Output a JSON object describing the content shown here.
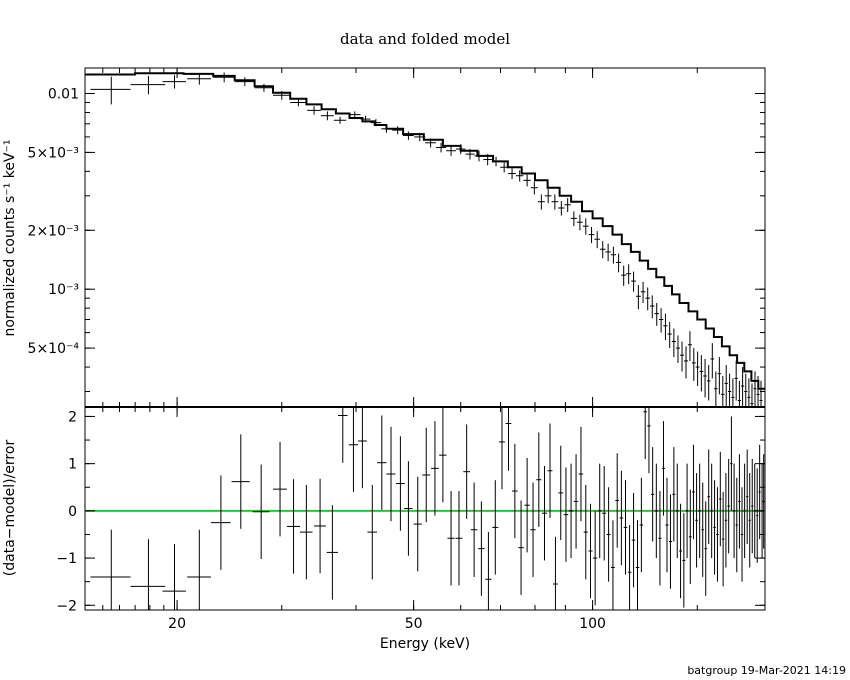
{
  "chart_data": [
    {
      "type": "scatter",
      "title": "data and folded model",
      "ylabel": "normalized counts s⁻¹ keV⁻¹",
      "xlabel": "",
      "yscale": "log",
      "xscale": "log",
      "xlim": [
        14,
        195
      ],
      "ylim": [
        0.00025,
        0.0135
      ],
      "yticks": [
        {
          "value": 0.01,
          "label": "0.01"
        },
        {
          "value": 0.005,
          "label": "5×10⁻³"
        },
        {
          "value": 0.002,
          "label": "2×10⁻³"
        },
        {
          "value": 0.001,
          "label": "10⁻³"
        },
        {
          "value": 0.0005,
          "label": "5×10⁻⁴"
        }
      ],
      "series": [
        {
          "type": "errorbar",
          "x": [
            15.5,
            17.9,
            19.8,
            21.8,
            24.0,
            26.0,
            28.0,
            30.0,
            32.0,
            34.0,
            35.8,
            37.6,
            39.8,
            41.5,
            43.2,
            45.0,
            47.0,
            49.0,
            51.2,
            53.4,
            55.6,
            57.8,
            60.0,
            62.2,
            64.4,
            66.6,
            68.8,
            71.0,
            73.2,
            75.4,
            77.6,
            79.8,
            82.0,
            84.2,
            86.4,
            88.6,
            90.8,
            93.0,
            95.2,
            97.4,
            99.6,
            101.8,
            104.0,
            106.2,
            108.4,
            110.6,
            112.8,
            115.0,
            117.2,
            119.4,
            121.6,
            123.8,
            126.0,
            128.2,
            130.4,
            132.6,
            134.8,
            137.0,
            139.2,
            141.4,
            143.6,
            145.8,
            148.0,
            150.2,
            152.4,
            154.6,
            156.8,
            159.0,
            161.2,
            163.4,
            165.6,
            167.8,
            170.0,
            172.2,
            174.4,
            176.6,
            178.8,
            181.0,
            183.2,
            185.4,
            187.6,
            189.8,
            192.0
          ],
          "y": [
            0.0105,
            0.0111,
            0.0115,
            0.0119,
            0.0121,
            0.0115,
            0.0107,
            0.0098,
            0.009,
            0.0082,
            0.0077,
            0.0073,
            0.0078,
            0.0074,
            0.0071,
            0.0066,
            0.0065,
            0.0061,
            0.006,
            0.0056,
            0.0053,
            0.0051,
            0.0052,
            0.0049,
            0.0048,
            0.0046,
            0.0045,
            0.0042,
            0.0039,
            0.0038,
            0.0036,
            0.0033,
            0.0028,
            0.003,
            0.0028,
            0.0026,
            0.0027,
            0.0023,
            0.0022,
            0.0021,
            0.0019,
            0.0018,
            0.0016,
            0.00155,
            0.0015,
            0.00137,
            0.00118,
            0.0012,
            0.0011,
            0.00092,
            0.00097,
            0.0009,
            0.00082,
            0.00075,
            0.0007,
            0.00065,
            0.00059,
            0.00054,
            0.0005,
            0.00046,
            0.00043,
            0.00052,
            0.00042,
            0.0004,
            0.00038,
            0.00036,
            0.00034,
            0.00044,
            0.00031,
            0.00037,
            0.00029,
            0.00033,
            0.0003,
            0.00028,
            0.00035,
            0.00027,
            0.00032,
            0.0003,
            0.00028,
            0.00026,
            0.00031,
            0.00029,
            0.00027
          ],
          "xerr": [
            1.2,
            1.2,
            0.9,
            1.0,
            1.0,
            1.0,
            1.0,
            1.0,
            1.0,
            0.9,
            0.9,
            0.9,
            0.9,
            0.8,
            0.9,
            0.9,
            1.0,
            1.0,
            1.1,
            1.1,
            1.1,
            1.1,
            1.1,
            1.1,
            1.1,
            1.1,
            1.1,
            1.1,
            1.1,
            1.1,
            1.1,
            1.1,
            1.1,
            1.1,
            1.1,
            1.1,
            1.1,
            1.1,
            1.1,
            1.1,
            1.1,
            1.1,
            1.1,
            1.1,
            1.1,
            1.1,
            1.1,
            1.1,
            1.1,
            1.1,
            1.1,
            1.1,
            1.1,
            1.1,
            1.1,
            1.1,
            1.1,
            1.1,
            1.1,
            1.1,
            1.1,
            1.1,
            1.1,
            1.1,
            1.1,
            1.1,
            1.1,
            1.1,
            1.1,
            1.1,
            1.1,
            1.1,
            1.1,
            1.1,
            1.1,
            1.1,
            1.1,
            1.1,
            1.1,
            1.1,
            1.1,
            1.1,
            1.1
          ],
          "yerr": [
            0.0017,
            0.0012,
            0.0009,
            0.0008,
            0.0007,
            0.0006,
            0.0005,
            0.0005,
            0.0004,
            0.0004,
            0.0004,
            0.0003,
            0.0003,
            0.0003,
            0.0003,
            0.0003,
            0.0003,
            0.0003,
            0.0003,
            0.0003,
            0.0003,
            0.0003,
            0.0003,
            0.0003,
            0.0003,
            0.0003,
            0.00025,
            0.00025,
            0.00025,
            0.00025,
            0.00025,
            0.00025,
            0.00025,
            0.00025,
            0.00025,
            0.00022,
            0.00022,
            0.0002,
            0.0002,
            0.0002,
            0.00018,
            0.00018,
            0.00016,
            0.00016,
            0.00015,
            0.00015,
            0.00014,
            0.00014,
            0.00013,
            0.00013,
            0.00012,
            0.00012,
            0.00011,
            0.0001,
            0.0001,
            0.0001,
            9e-05,
            9e-05,
            8e-05,
            8e-05,
            8e-05,
            9e-05,
            8e-05,
            8e-05,
            8e-05,
            8e-05,
            7e-05,
            9e-05,
            7e-05,
            8e-05,
            7e-05,
            8e-05,
            7e-05,
            7e-05,
            8e-05,
            7e-05,
            8e-05,
            7e-05,
            7e-05,
            7e-05,
            7e-05,
            7e-05,
            7e-05
          ]
        },
        {
          "type": "step",
          "x": [
            14.0,
            17.0,
            20.5,
            23.0,
            25.0,
            27.0,
            29.0,
            31.0,
            33.0,
            35.0,
            37.0,
            39.0,
            41.0,
            43.0,
            45.0,
            48.0,
            52.0,
            56.0,
            60.0,
            64.0,
            68.0,
            72.0,
            76.0,
            80.0,
            84.0,
            88.0,
            92.0,
            96.0,
            100.0,
            104.0,
            108.0,
            112.0,
            116.0,
            120.0,
            124.0,
            128.0,
            132.0,
            136.0,
            140.0,
            145.0,
            150.0,
            155.0,
            160.0,
            165.0,
            170.0,
            175.0,
            180.0,
            185.0,
            190.0,
            195.0
          ],
          "y": [
            0.0125,
            0.0127,
            0.0126,
            0.0123,
            0.0117,
            0.0109,
            0.0101,
            0.0094,
            0.0088,
            0.0083,
            0.0079,
            0.0075,
            0.0072,
            0.0069,
            0.0066,
            0.0062,
            0.0058,
            0.0054,
            0.0051,
            0.0048,
            0.0045,
            0.0042,
            0.0039,
            0.0036,
            0.0033,
            0.003,
            0.0028,
            0.0025,
            0.0023,
            0.0021,
            0.0019,
            0.0017,
            0.00155,
            0.0014,
            0.00127,
            0.00115,
            0.00104,
            0.00094,
            0.00085,
            0.00077,
            0.0007,
            0.00063,
            0.00057,
            0.00051,
            0.00046,
            0.00042,
            0.00038,
            0.00034,
            0.00031,
            0.00029
          ]
        }
      ]
    },
    {
      "type": "scatter",
      "title": "",
      "ylabel": "(data−model)/error",
      "xlabel": "Energy (keV)",
      "xscale": "log",
      "xlim": [
        14,
        195
      ],
      "ylim": [
        -2.1,
        2.2
      ],
      "yticks": [
        {
          "value": 2,
          "label": "2"
        },
        {
          "value": 1,
          "label": "1"
        },
        {
          "value": 0,
          "label": "0"
        },
        {
          "value": -1,
          "label": "−1"
        },
        {
          "value": -2,
          "label": "−2"
        }
      ],
      "xticks": [
        {
          "value": 20,
          "label": "20"
        },
        {
          "value": 50,
          "label": "50"
        },
        {
          "value": 100,
          "label": "100"
        }
      ],
      "series": [
        {
          "type": "errorbar",
          "x": [
            15.5,
            17.9,
            19.8,
            21.8,
            23.7,
            25.6,
            27.7,
            29.8,
            31.4,
            33.0,
            34.8,
            36.5,
            38.0,
            39.6,
            41.0,
            42.6,
            44.2,
            45.8,
            47.5,
            49.0,
            50.8,
            52.5,
            54.3,
            56.0,
            57.8,
            59.6,
            61.4,
            63.2,
            65.0,
            66.8,
            68.6,
            70.4,
            72.2,
            74.0,
            75.8,
            77.6,
            79.4,
            81.2,
            83.0,
            84.8,
            86.6,
            88.4,
            90.2,
            92.0,
            93.8,
            95.6,
            97.4,
            99.2,
            101.0,
            102.8,
            104.6,
            106.4,
            108.2,
            110.0,
            111.8,
            113.6,
            115.4,
            117.2,
            119.0,
            120.8,
            122.6,
            124.4,
            126.2,
            128.0,
            129.8,
            131.6,
            133.4,
            135.2,
            137.0,
            138.8,
            140.6,
            142.4,
            144.2,
            146.0,
            147.8,
            149.6,
            151.4,
            153.2,
            155.0,
            156.8,
            158.6,
            160.4,
            162.2,
            164.0,
            165.8,
            167.6,
            169.4,
            171.2,
            173.0,
            174.8,
            176.6,
            178.4,
            180.2,
            182.0,
            183.8,
            185.6,
            187.4,
            189.2,
            191.0,
            192.8,
            194.0
          ],
          "y": [
            -1.4,
            -1.6,
            -1.7,
            -1.4,
            -0.25,
            0.62,
            -0.02,
            0.46,
            -0.33,
            -0.45,
            -0.32,
            -0.88,
            2.02,
            1.4,
            1.48,
            -0.45,
            1.02,
            0.78,
            0.58,
            0.05,
            -0.28,
            0.76,
            0.9,
            1.18,
            -0.58,
            -0.58,
            0.83,
            -0.4,
            -0.8,
            -1.45,
            -0.35,
            1.46,
            1.85,
            0.42,
            -0.78,
            0.12,
            -0.4,
            0.66,
            -0.05,
            0.85,
            -1.55,
            0.38,
            -0.08,
            0.0,
            0.2,
            0.78,
            -0.45,
            -0.85,
            -1.0,
            0.0,
            -0.05,
            -0.5,
            -1.2,
            0.22,
            -0.15,
            -0.35,
            -1.3,
            -0.62,
            -1.2,
            -0.3,
            2.1,
            1.8,
            0.35,
            0.0,
            -0.58,
            0.9,
            -0.3,
            -0.65,
            0.35,
            0.0,
            -0.85,
            -1.05,
            0.0,
            -0.55,
            0.4,
            -0.2,
            0.0,
            -0.4,
            -0.8,
            0.3,
            0.0,
            -0.35,
            -0.5,
            0.25,
            -0.6,
            -0.2,
            0.1,
            1.0,
            0.0,
            -0.3,
            0.2,
            -0.5,
            0.0,
            0.3,
            -0.2,
            0.1,
            0.0,
            -0.1,
            0.4,
            0.0,
            0.2
          ],
          "xerr": [
            1.2,
            1.2,
            0.9,
            1.0,
            0.9,
            0.9,
            0.9,
            0.8,
            0.8,
            0.8,
            0.8,
            0.8,
            0.7,
            0.7,
            0.7,
            0.8,
            0.8,
            0.8,
            0.8,
            0.8,
            0.8,
            0.8,
            0.8,
            0.8,
            0.8,
            0.8,
            0.8,
            0.8,
            0.8,
            0.8,
            0.8,
            0.8,
            0.8,
            0.8,
            0.8,
            0.8,
            0.8,
            0.8,
            0.8,
            0.8,
            0.8,
            0.8,
            0.8,
            0.8,
            0.8,
            0.8,
            0.8,
            0.8,
            0.8,
            0.8,
            0.8,
            0.8,
            0.8,
            0.8,
            0.8,
            0.8,
            0.8,
            0.8,
            0.8,
            0.8,
            0.8,
            0.8,
            0.8,
            0.8,
            0.8,
            0.8,
            0.8,
            0.8,
            0.8,
            0.8,
            0.8,
            0.8,
            0.8,
            0.8,
            0.8,
            0.8,
            0.8,
            0.8,
            0.8,
            0.8,
            0.8,
            0.8,
            0.8,
            0.8,
            0.8,
            0.8,
            0.8,
            0.8,
            0.8,
            0.8,
            0.8,
            0.8,
            0.8,
            0.8,
            0.8,
            0.8,
            0.8,
            0.8,
            0.8,
            0.8,
            0.8
          ],
          "yerr": [
            1.0,
            1.0,
            1.0,
            1.0,
            1.0,
            1.0,
            1.0,
            1.0,
            1.0,
            1.0,
            1.0,
            1.0,
            1.0,
            1.0,
            1.0,
            1.0,
            1.0,
            1.0,
            1.0,
            1.0,
            1.0,
            1.0,
            1.0,
            1.0,
            1.0,
            1.0,
            1.0,
            1.0,
            1.0,
            1.0,
            1.0,
            1.0,
            1.0,
            1.0,
            1.0,
            1.0,
            1.0,
            1.0,
            1.0,
            1.0,
            1.0,
            1.0,
            1.0,
            1.0,
            1.0,
            1.0,
            1.0,
            1.0,
            1.0,
            1.0,
            1.0,
            1.0,
            1.0,
            1.0,
            1.0,
            1.0,
            1.0,
            1.0,
            1.0,
            1.0,
            1.0,
            1.0,
            1.0,
            1.0,
            1.0,
            1.0,
            1.0,
            1.0,
            1.0,
            1.0,
            1.0,
            1.0,
            1.0,
            1.0,
            1.0,
            1.0,
            1.0,
            1.0,
            1.0,
            1.0,
            1.0,
            1.0,
            1.0,
            1.0,
            1.0,
            1.0,
            1.0,
            1.0,
            1.0,
            1.0,
            1.0,
            1.0,
            1.0,
            1.0,
            1.0,
            1.0,
            1.0,
            1.0,
            1.0,
            1.0,
            1.0
          ]
        }
      ],
      "reference_line": {
        "y": 0,
        "color": "#22cc22"
      }
    }
  ],
  "footer": {
    "credit": "batgroup 19-Mar-2021 14:19"
  },
  "colors": {
    "axes": "#000000",
    "data": "#000000",
    "zero_line": "#22cc22"
  }
}
